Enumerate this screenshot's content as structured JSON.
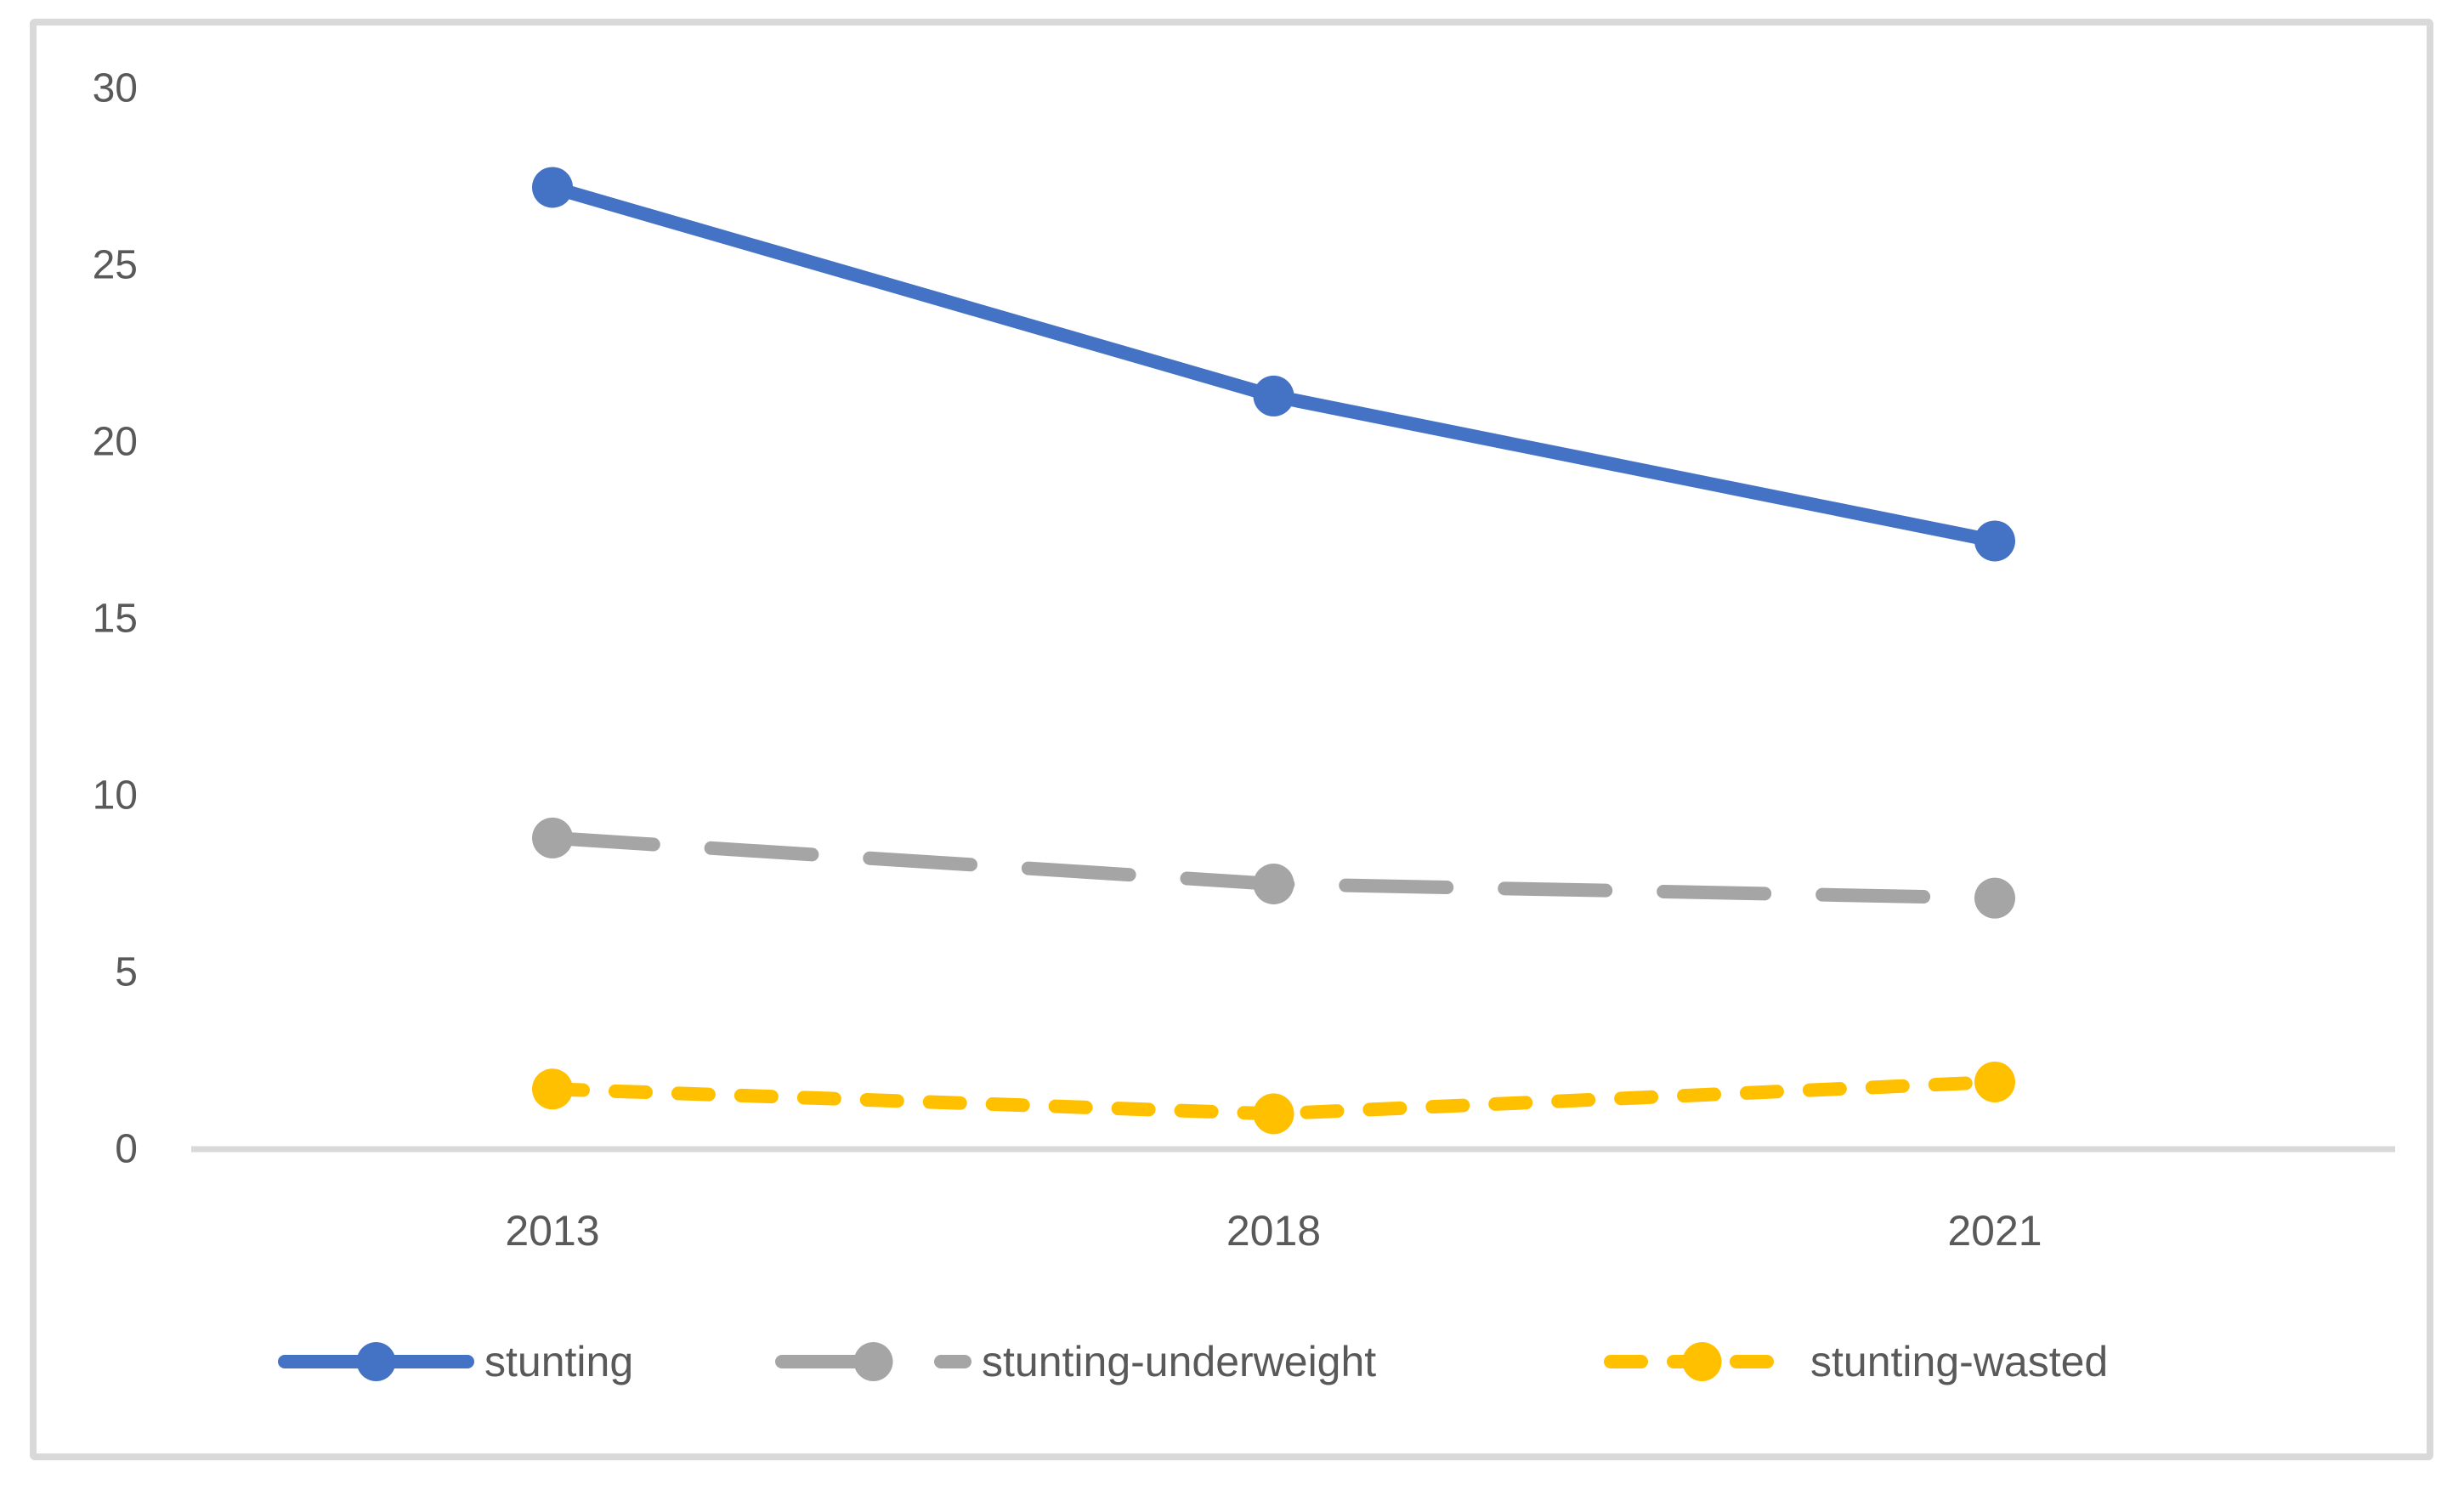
{
  "chart_data": {
    "type": "line",
    "title": "",
    "xlabel": "",
    "ylabel": "",
    "categories": [
      "2013",
      "2018",
      "2021"
    ],
    "series": [
      {
        "name": "stunting",
        "values": [
          27.2,
          21.3,
          17.2
        ],
        "color": "#4472C4",
        "dash": "solid",
        "marker": "circle"
      },
      {
        "name": "stunting-underweight",
        "values": [
          8.8,
          7.5,
          7.1
        ],
        "color": "#A5A5A5",
        "dash": "long-dash",
        "marker": "circle"
      },
      {
        "name": "stunting-wasted",
        "values": [
          1.7,
          1.0,
          1.9
        ],
        "color": "#FFC000",
        "dash": "short-dash",
        "marker": "circle"
      }
    ],
    "ylim": [
      0,
      30
    ],
    "yticks": [
      0,
      5,
      10,
      15,
      20,
      25,
      30
    ],
    "grid": false,
    "legend_position": "bottom",
    "axis_line_color": "#D9D9D9",
    "frame_color": "#D9D9D9",
    "text_color": "#595959"
  }
}
